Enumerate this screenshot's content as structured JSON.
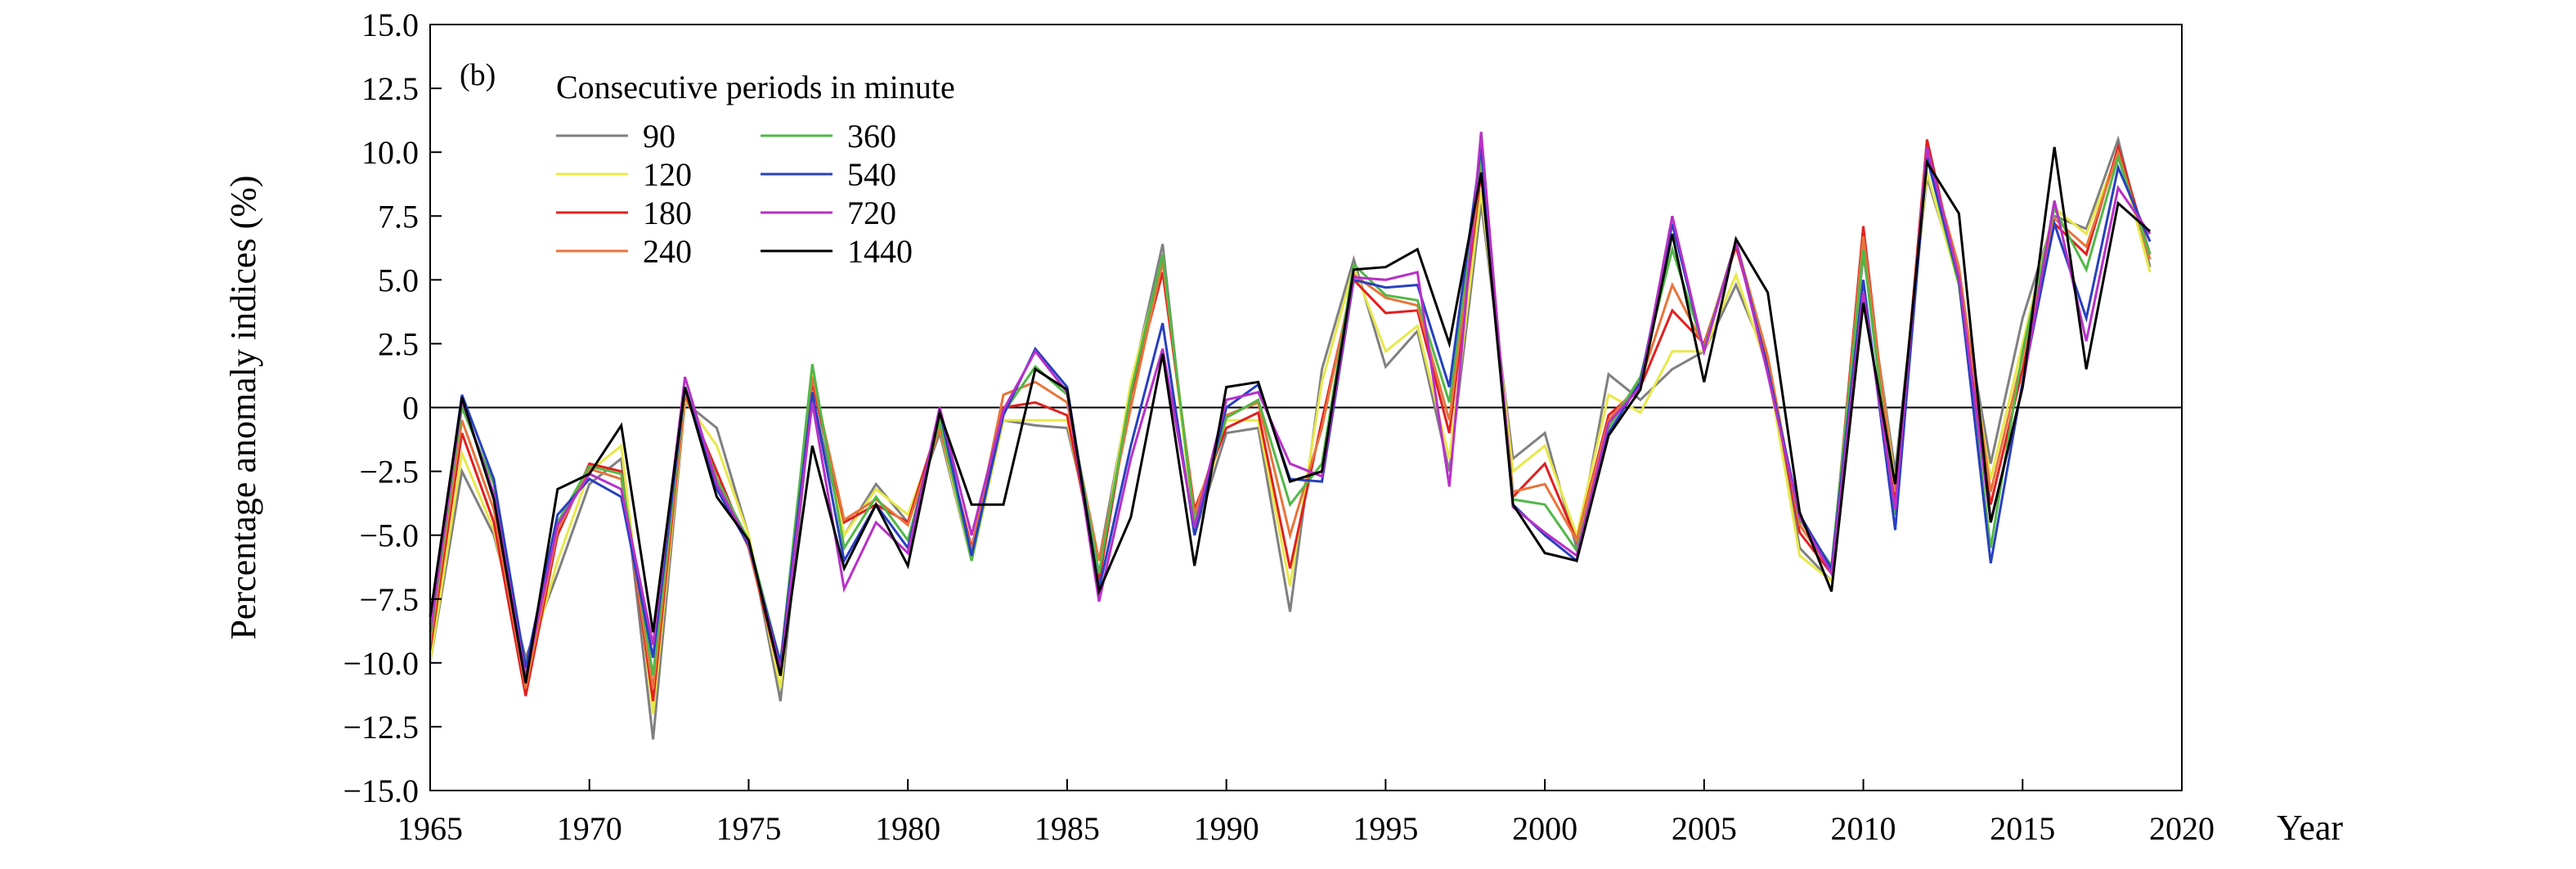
{
  "chart_data": {
    "type": "line",
    "panel_label": "(b)",
    "title": "",
    "xlabel": "Year",
    "ylabel": "Percentage anomaly indices (%)",
    "xlim": [
      1965,
      2020
    ],
    "ylim": [
      -15,
      15
    ],
    "x_ticks": [
      1965,
      1970,
      1975,
      1980,
      1985,
      1990,
      1995,
      2000,
      2005,
      2010,
      2015,
      2020
    ],
    "y_ticks": [
      15,
      12.5,
      10,
      7.5,
      5,
      2.5,
      0,
      -2.5,
      -5,
      -7.5,
      -10,
      -12.5,
      -15
    ],
    "x_tick_labels": [
      "1965",
      "1970",
      "1975",
      "1980",
      "1985",
      "1990",
      "1995",
      "2000",
      "2005",
      "2010",
      "2015",
      "2020"
    ],
    "y_tick_labels": [
      "15.0",
      "12.5",
      "10.0",
      "7.5",
      "5.0",
      "2.5",
      "0",
      "−2.5",
      "−5.0",
      "−7.5",
      "−10.0",
      "−12.5",
      "−15.0"
    ],
    "zero_line": true,
    "legend_title": "Consecutive periods in minute",
    "legend_position": "top-left",
    "x": [
      1965,
      1966,
      1967,
      1968,
      1969,
      1970,
      1971,
      1972,
      1973,
      1974,
      1975,
      1976,
      1977,
      1978,
      1979,
      1980,
      1981,
      1982,
      1983,
      1984,
      1985,
      1986,
      1987,
      1988,
      1989,
      1990,
      1991,
      1992,
      1993,
      1994,
      1995,
      1996,
      1997,
      1998,
      1999,
      2000,
      2001,
      2002,
      2003,
      2004,
      2005,
      2006,
      2007,
      2008,
      2009,
      2010,
      2011,
      2012,
      2013,
      2014,
      2015,
      2016,
      2017,
      2018,
      2019
    ],
    "series": [
      {
        "name": "90",
        "color": "#808080",
        "values": [
          -10,
          -2.5,
          -5,
          -9.8,
          -6.5,
          -3,
          -2,
          -13,
          0.2,
          -0.8,
          -5,
          -11.5,
          0.5,
          -5,
          -3,
          -4.5,
          -1,
          -6,
          -0.5,
          -0.7,
          -0.8,
          -6,
          0.8,
          6.4,
          -5,
          -1,
          -0.8,
          -8,
          1.5,
          5.8,
          1.6,
          3,
          -2.5,
          8,
          -2,
          -1,
          -5.5,
          1.3,
          0.3,
          1.5,
          2.2,
          4.8,
          1.8,
          -5.5,
          -6.8,
          6,
          -2.5,
          9,
          5,
          -2.2,
          3.5,
          7.5,
          7,
          10.5,
          5.5
        ]
      },
      {
        "name": "120",
        "color": "#e8e84a",
        "values": [
          -10,
          -1.8,
          -4.8,
          -10.5,
          -6,
          -2.5,
          -1.5,
          -12,
          0.3,
          -1.5,
          -5,
          -11,
          1.5,
          -5,
          -3.2,
          -4.2,
          -0.8,
          -6,
          -0.5,
          -0.5,
          -0.5,
          -6.5,
          1,
          5.8,
          -4.8,
          -0.5,
          -0.5,
          -7,
          1,
          5.5,
          2.2,
          3.2,
          -2,
          8.5,
          -2.5,
          -1.5,
          -5,
          0.5,
          -0.2,
          2.2,
          2.2,
          5.2,
          1.5,
          -5.8,
          -6.8,
          6.3,
          -3,
          9.2,
          4.8,
          -2.8,
          2.5,
          7.8,
          6.8,
          10,
          5.3
        ]
      },
      {
        "name": "180",
        "color": "#e02020",
        "values": [
          -9.5,
          -1,
          -4.5,
          -11.3,
          -5,
          -2.2,
          -2.5,
          -11.5,
          0.5,
          -2.5,
          -5.5,
          -10.5,
          1,
          -4.5,
          -3.8,
          -4.5,
          -0.5,
          -5.5,
          0,
          0.2,
          -0.3,
          -6.8,
          0.5,
          5.3,
          -4,
          -0.8,
          -0.2,
          -6.3,
          -0.5,
          5,
          3.7,
          3.8,
          -1,
          9.2,
          -3.5,
          -2.2,
          -5.2,
          -0.3,
          0.8,
          3.8,
          2.5,
          6.3,
          1.8,
          -4.9,
          -6.5,
          7.1,
          -3.8,
          10.5,
          5,
          -3.8,
          1.5,
          7.2,
          6,
          10.2,
          6
        ]
      },
      {
        "name": "240",
        "color": "#e8743b",
        "values": [
          -9.2,
          -0.5,
          -4,
          -11,
          -4.8,
          -2.4,
          -2.8,
          -11,
          0.6,
          -2.8,
          -5.5,
          -10.2,
          1.2,
          -4.4,
          -3.6,
          -4.6,
          -0.8,
          -5.6,
          0.5,
          1,
          0.2,
          -6,
          0,
          5.7,
          -4.2,
          -0.3,
          0.2,
          -5,
          -0.8,
          5.2,
          4.3,
          4,
          -0.5,
          9.5,
          -3.3,
          -3,
          -5.2,
          -0.5,
          1,
          4.8,
          2.4,
          6.5,
          2,
          -4.6,
          -6.4,
          6.7,
          -3.3,
          10,
          5.5,
          -3.3,
          2,
          7.4,
          6.3,
          10,
          5.8
        ]
      },
      {
        "name": "360",
        "color": "#52b848",
        "values": [
          -9,
          0,
          -3,
          -10.5,
          -4.5,
          -2.3,
          -2.6,
          -10.5,
          0.8,
          -2.8,
          -5.2,
          -10,
          1.7,
          -5.5,
          -3.5,
          -5.2,
          -0.5,
          -6,
          -0.2,
          1.6,
          0.5,
          -6.5,
          0.6,
          6,
          -4.5,
          -0.4,
          0.3,
          -3.8,
          -2.2,
          5.6,
          4.4,
          4.2,
          0.2,
          9.8,
          -3.6,
          -3.8,
          -5.6,
          -0.8,
          1.2,
          6.2,
          2.3,
          6.5,
          1.5,
          -4.4,
          -6.2,
          6.2,
          -4.2,
          9.8,
          4.8,
          -5.5,
          2.2,
          7.8,
          5.4,
          9.8,
          6
        ]
      },
      {
        "name": "540",
        "color": "#2840c0",
        "values": [
          -8.5,
          0.5,
          -2.8,
          -10.2,
          -4.2,
          -2.8,
          -3.5,
          -9.8,
          0.8,
          -3.2,
          -5.4,
          -10,
          0.6,
          -6,
          -3.8,
          -5.5,
          -0.1,
          -5.8,
          -0.3,
          2.3,
          0.8,
          -7.1,
          -1.5,
          3.3,
          -5,
          0,
          0.9,
          -2.8,
          -2.9,
          5,
          4.7,
          4.8,
          0.8,
          10.2,
          -3.8,
          -5,
          -6,
          -1,
          1,
          7.2,
          2.2,
          6.5,
          1.5,
          -4.2,
          -6.3,
          5,
          -4.8,
          9.8,
          5,
          -6.1,
          1,
          7.2,
          3.5,
          9.4,
          6.5
        ]
      },
      {
        "name": "720",
        "color": "#b830c8",
        "values": [
          -8.8,
          0.3,
          -3.4,
          -10.6,
          -4.6,
          -2.6,
          -3.2,
          -9.3,
          1.2,
          -3,
          -5.3,
          -10.3,
          0.2,
          -7.1,
          -4.5,
          -5.7,
          0,
          -5,
          -0.1,
          2.2,
          0.6,
          -7.6,
          -2,
          2.3,
          -4.7,
          0.3,
          0.6,
          -2.2,
          -2.7,
          5.1,
          5,
          5.3,
          -3.1,
          10.8,
          -3.9,
          -4.9,
          -5.8,
          -0.6,
          0.8,
          7.5,
          2.2,
          6.5,
          1.3,
          -4.3,
          -6.5,
          4.5,
          -4,
          10.2,
          5.1,
          -4.5,
          0.8,
          8.1,
          2.6,
          8.6,
          6.8
        ]
      },
      {
        "name": "1440",
        "color": "#000000",
        "values": [
          -8.2,
          0.4,
          -3.6,
          -10.8,
          -3.2,
          -2.6,
          -0.7,
          -8.8,
          0.8,
          -3.5,
          -5.2,
          -10.5,
          -1.5,
          -6.3,
          -3.8,
          -6.2,
          -0.2,
          -3.8,
          -3.8,
          1.5,
          0.7,
          -7.2,
          -4.3,
          2.1,
          -6.2,
          0.8,
          1,
          -2.9,
          -2.5,
          5.4,
          5.5,
          6.2,
          2.5,
          9.2,
          -3.8,
          -5.7,
          -6,
          -1.1,
          0.7,
          6.8,
          1,
          6.6,
          4.5,
          -4.1,
          -7.2,
          4.1,
          -3,
          9.6,
          7.6,
          -4.5,
          0.8,
          10.2,
          1.5,
          8,
          6.9
        ]
      }
    ]
  }
}
